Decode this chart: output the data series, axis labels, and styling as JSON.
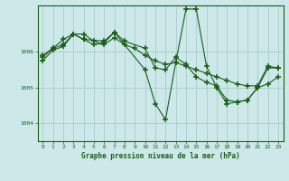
{
  "title": "Graphe pression niveau de la mer (hPa)",
  "bg_color": "#cce8e8",
  "grid_color": "#aacccc",
  "line_color": "#1a5c1a",
  "marker": "+",
  "xlim": [
    -0.5,
    23.5
  ],
  "ylim": [
    1003.5,
    1007.3
  ],
  "yticks": [
    1004,
    1005,
    1006
  ],
  "xticks": [
    0,
    1,
    2,
    3,
    4,
    5,
    6,
    7,
    8,
    9,
    10,
    11,
    12,
    13,
    14,
    15,
    16,
    17,
    18,
    19,
    20,
    21,
    22,
    23
  ],
  "series": [
    {
      "x": [
        0,
        1,
        2,
        3,
        4,
        5,
        6,
        7,
        8,
        9,
        10,
        11,
        12,
        13,
        14,
        15,
        16,
        17,
        18,
        19,
        20,
        21,
        22,
        23
      ],
      "y": [
        1005.9,
        1006.1,
        1006.35,
        1006.5,
        1006.5,
        1006.3,
        1006.2,
        1006.4,
        1006.2,
        1006.1,
        1005.9,
        1005.75,
        1005.65,
        1005.7,
        1005.6,
        1005.5,
        1005.4,
        1005.3,
        1005.2,
        1005.1,
        1005.05,
        1005.05,
        1005.6,
        1005.55
      ]
    },
    {
      "x": [
        0,
        1,
        2,
        3,
        4,
        5,
        6,
        7,
        8,
        10,
        11,
        12,
        13,
        14,
        15,
        16,
        17,
        18,
        19,
        20,
        21,
        22,
        23
      ],
      "y": [
        1005.85,
        1006.1,
        1006.2,
        1006.5,
        1006.35,
        1006.2,
        1006.25,
        1006.55,
        1006.3,
        1006.1,
        1005.55,
        1005.5,
        1005.85,
        1005.65,
        1005.3,
        1005.15,
        1005.05,
        1004.65,
        1004.6,
        1004.65,
        1005.0,
        1005.55,
        1005.55
      ]
    },
    {
      "x": [
        0,
        1,
        2,
        3,
        4,
        6,
        7,
        10,
        11,
        12,
        13,
        14,
        15,
        16,
        17,
        18,
        19,
        20,
        21,
        22,
        23
      ],
      "y": [
        1005.75,
        1006.05,
        1006.15,
        1006.5,
        1006.35,
        1006.3,
        1006.55,
        1005.5,
        1004.55,
        1004.1,
        1005.7,
        1007.2,
        1007.2,
        1005.6,
        1005.0,
        1004.55,
        1004.6,
        1004.65,
        1005.0,
        1005.1,
        1005.3
      ]
    }
  ]
}
